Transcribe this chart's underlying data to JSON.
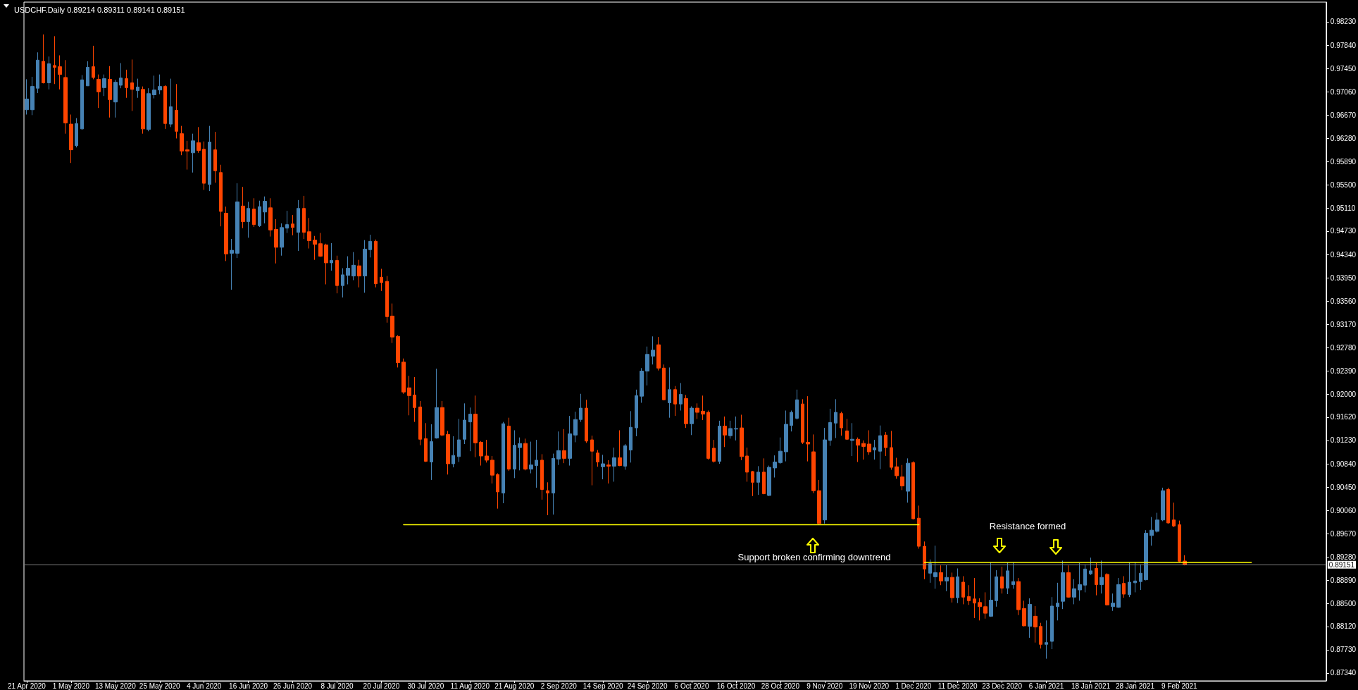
{
  "chart_data": {
    "type": "candlestick",
    "title": "USDCHF.Daily 0.89214 0.89311 0.89141 0.89151",
    "categories": [
      "21 Apr 2020",
      null,
      null,
      null,
      null,
      null,
      null,
      null,
      "1 May 2020",
      null,
      null,
      null,
      null,
      null,
      null,
      null,
      "13 May 2020",
      null,
      null,
      null,
      null,
      null,
      null,
      null,
      "25 May 2020",
      null,
      null,
      null,
      null,
      null,
      null,
      null,
      "4 Jun 2020",
      null,
      null,
      null,
      null,
      null,
      null,
      null,
      "16 Jun 2020",
      null,
      null,
      null,
      null,
      null,
      null,
      null,
      "26 Jun 2020",
      null,
      null,
      null,
      null,
      null,
      null,
      null,
      "8 Jul 2020",
      null,
      null,
      null,
      null,
      null,
      null,
      null,
      "20 Jul 2020",
      null,
      null,
      null,
      null,
      null,
      null,
      null,
      "30 Jul 2020",
      null,
      null,
      null,
      null,
      null,
      null,
      null,
      "11 Aug 2020",
      null,
      null,
      null,
      null,
      null,
      null,
      null,
      "21 Aug 2020",
      null,
      null,
      null,
      null,
      null,
      null,
      null,
      "2 Sep 2020",
      null,
      null,
      null,
      null,
      null,
      null,
      null,
      "14 Sep 2020",
      null,
      null,
      null,
      null,
      null,
      null,
      null,
      "24 Sep 2020",
      null,
      null,
      null,
      null,
      null,
      null,
      null,
      "6 Oct 2020",
      null,
      null,
      null,
      null,
      null,
      null,
      null,
      "16 Oct 2020",
      null,
      null,
      null,
      null,
      null,
      null,
      null,
      "28 Oct 2020",
      null,
      null,
      null,
      null,
      null,
      null,
      null,
      "9 Nov 2020",
      null,
      null,
      null,
      null,
      null,
      null,
      null,
      "19 Nov 2020",
      null,
      null,
      null,
      null,
      null,
      null,
      null,
      "1 Dec 2020",
      null,
      null,
      null,
      null,
      null,
      null,
      null,
      "11 Dec 2020",
      null,
      null,
      null,
      null,
      null,
      null,
      null,
      "23 Dec 2020",
      null,
      null,
      null,
      null,
      null,
      null,
      null,
      "6 Jan 2021",
      null,
      null,
      null,
      null,
      null,
      null,
      null,
      "18 Jan 2021",
      null,
      null,
      null,
      null,
      null,
      null,
      null,
      "28 Jan 2021",
      null,
      null,
      null,
      null,
      null,
      null,
      null,
      "9 Feb 2021",
      null,
      null,
      null,
      null,
      null,
      null,
      null,
      null,
      null,
      null,
      null,
      null,
      null,
      null,
      null,
      null,
      null,
      null,
      null,
      null,
      null,
      null,
      null,
      null,
      null,
      null
    ],
    "ohlc": [
      [
        0.9676,
        0.9727,
        0.9668,
        0.9694
      ],
      [
        0.9676,
        0.9731,
        0.9667,
        0.9715
      ],
      [
        0.9712,
        0.9772,
        0.9704,
        0.9759
      ],
      [
        0.9757,
        0.9802,
        0.972,
        0.9721
      ],
      [
        0.9721,
        0.9765,
        0.971,
        0.9753
      ],
      [
        0.975,
        0.9799,
        0.9719,
        0.9747
      ],
      [
        0.9748,
        0.9767,
        0.971,
        0.9735
      ],
      [
        0.973,
        0.9759,
        0.9636,
        0.9654
      ],
      [
        0.9652,
        0.9668,
        0.9587,
        0.9609
      ],
      [
        0.9616,
        0.9662,
        0.9613,
        0.9653
      ],
      [
        0.9644,
        0.9734,
        0.9643,
        0.9726
      ],
      [
        0.9716,
        0.9757,
        0.9716,
        0.9747
      ],
      [
        0.9748,
        0.9783,
        0.9727,
        0.973
      ],
      [
        0.9727,
        0.9735,
        0.9679,
        0.9706
      ],
      [
        0.9713,
        0.9735,
        0.9699,
        0.9728
      ],
      [
        0.9727,
        0.9749,
        0.9663,
        0.9693
      ],
      [
        0.9689,
        0.9726,
        0.9663,
        0.9722
      ],
      [
        0.9717,
        0.9754,
        0.9712,
        0.9729
      ],
      [
        0.9728,
        0.9743,
        0.9696,
        0.9713
      ],
      [
        0.9721,
        0.976,
        0.9674,
        0.971
      ],
      [
        0.9708,
        0.9728,
        0.9696,
        0.9714
      ],
      [
        0.971,
        0.9715,
        0.9636,
        0.9644
      ],
      [
        0.9643,
        0.9712,
        0.964,
        0.9703
      ],
      [
        0.9701,
        0.9733,
        0.9695,
        0.9709
      ],
      [
        0.9709,
        0.9735,
        0.9702,
        0.9715
      ],
      [
        0.9715,
        0.9717,
        0.9644,
        0.9653
      ],
      [
        0.9652,
        0.9728,
        0.9647,
        0.9681
      ],
      [
        0.9675,
        0.9719,
        0.9628,
        0.964
      ],
      [
        0.9636,
        0.9649,
        0.96,
        0.9607
      ],
      [
        0.9609,
        0.9624,
        0.9576,
        0.9607
      ],
      [
        0.9604,
        0.9636,
        0.9571,
        0.9624
      ],
      [
        0.9621,
        0.9647,
        0.9604,
        0.9608
      ],
      [
        0.961,
        0.9623,
        0.9542,
        0.9553
      ],
      [
        0.9551,
        0.9649,
        0.954,
        0.9622
      ],
      [
        0.9609,
        0.9639,
        0.9554,
        0.9574
      ],
      [
        0.9571,
        0.9584,
        0.9481,
        0.9506
      ],
      [
        0.9503,
        0.9514,
        0.9423,
        0.9435
      ],
      [
        0.9436,
        0.946,
        0.9375,
        0.9441
      ],
      [
        0.9436,
        0.9553,
        0.9428,
        0.9522
      ],
      [
        0.9515,
        0.9547,
        0.9478,
        0.9489
      ],
      [
        0.9489,
        0.9522,
        0.9462,
        0.9511
      ],
      [
        0.951,
        0.9528,
        0.948,
        0.9484
      ],
      [
        0.9482,
        0.9524,
        0.948,
        0.9514
      ],
      [
        0.9505,
        0.9531,
        0.9486,
        0.9523
      ],
      [
        0.9512,
        0.9528,
        0.9464,
        0.9475
      ],
      [
        0.9476,
        0.9493,
        0.9419,
        0.9446
      ],
      [
        0.9446,
        0.9486,
        0.9432,
        0.9479
      ],
      [
        0.9478,
        0.9507,
        0.947,
        0.9484
      ],
      [
        0.9485,
        0.95,
        0.9466,
        0.9479
      ],
      [
        0.9471,
        0.9525,
        0.944,
        0.9511
      ],
      [
        0.9511,
        0.9532,
        0.946,
        0.9471
      ],
      [
        0.9472,
        0.9495,
        0.9444,
        0.9457
      ],
      [
        0.9458,
        0.9465,
        0.9425,
        0.9451
      ],
      [
        0.9452,
        0.947,
        0.943,
        0.9431
      ],
      [
        0.945,
        0.9452,
        0.9384,
        0.942
      ],
      [
        0.942,
        0.9453,
        0.9407,
        0.9424
      ],
      [
        0.9424,
        0.9432,
        0.9369,
        0.9382
      ],
      [
        0.9382,
        0.9411,
        0.9362,
        0.94
      ],
      [
        0.9399,
        0.9431,
        0.9384,
        0.9411
      ],
      [
        0.9398,
        0.9438,
        0.9391,
        0.9416
      ],
      [
        0.9415,
        0.9425,
        0.9379,
        0.9398
      ],
      [
        0.9398,
        0.9458,
        0.937,
        0.9443
      ],
      [
        0.9442,
        0.9467,
        0.9429,
        0.9456
      ],
      [
        0.9456,
        0.9459,
        0.9379,
        0.9385
      ],
      [
        0.9396,
        0.941,
        0.9373,
        0.9387
      ],
      [
        0.9389,
        0.9398,
        0.932,
        0.933
      ],
      [
        0.9331,
        0.9352,
        0.9286,
        0.9296
      ],
      [
        0.9297,
        0.9299,
        0.9245,
        0.9253
      ],
      [
        0.9254,
        0.926,
        0.9201,
        0.9204
      ],
      [
        0.9211,
        0.9231,
        0.9165,
        0.9198
      ],
      [
        0.9199,
        0.9229,
        0.9154,
        0.9178
      ],
      [
        0.9179,
        0.9189,
        0.9115,
        0.9125
      ],
      [
        0.9126,
        0.9152,
        0.9087,
        0.9088
      ],
      [
        0.9087,
        0.915,
        0.9057,
        0.9121
      ],
      [
        0.9127,
        0.9243,
        0.9126,
        0.9178
      ],
      [
        0.9178,
        0.9189,
        0.913,
        0.9132
      ],
      [
        0.9133,
        0.9139,
        0.9066,
        0.9084
      ],
      [
        0.9084,
        0.913,
        0.9078,
        0.9098
      ],
      [
        0.9096,
        0.9159,
        0.9087,
        0.9124
      ],
      [
        0.9125,
        0.9185,
        0.9117,
        0.9157
      ],
      [
        0.9154,
        0.9178,
        0.9105,
        0.9167
      ],
      [
        0.9167,
        0.9198,
        0.9095,
        0.9119
      ],
      [
        0.912,
        0.9122,
        0.9081,
        0.9097
      ],
      [
        0.9097,
        0.9124,
        0.9086,
        0.909
      ],
      [
        0.909,
        0.9097,
        0.9051,
        0.9065
      ],
      [
        0.9066,
        0.9068,
        0.9009,
        0.9037
      ],
      [
        0.9035,
        0.9154,
        0.9018,
        0.9151
      ],
      [
        0.9147,
        0.9161,
        0.9072,
        0.9075
      ],
      [
        0.9075,
        0.914,
        0.906,
        0.9115
      ],
      [
        0.9111,
        0.9128,
        0.9073,
        0.9118
      ],
      [
        0.9118,
        0.9126,
        0.9073,
        0.9075
      ],
      [
        0.9075,
        0.9121,
        0.9068,
        0.9082
      ],
      [
        0.9081,
        0.9124,
        0.9044,
        0.909
      ],
      [
        0.909,
        0.91,
        0.9024,
        0.9041
      ],
      [
        0.9039,
        0.9053,
        0.8998,
        0.9035
      ],
      [
        0.9035,
        0.9101,
        0.8999,
        0.9093
      ],
      [
        0.9092,
        0.9138,
        0.9082,
        0.9106
      ],
      [
        0.9106,
        0.9142,
        0.9085,
        0.9093
      ],
      [
        0.9093,
        0.9164,
        0.9081,
        0.9134
      ],
      [
        0.9132,
        0.9171,
        0.912,
        0.9158
      ],
      [
        0.9158,
        0.9201,
        0.9154,
        0.9177
      ],
      [
        0.9177,
        0.9191,
        0.9119,
        0.9122
      ],
      [
        0.9124,
        0.9131,
        0.9048,
        0.9105
      ],
      [
        0.9102,
        0.9107,
        0.9079,
        0.9087
      ],
      [
        0.9079,
        0.9099,
        0.9058,
        0.9084
      ],
      [
        0.9082,
        0.909,
        0.9051,
        0.908
      ],
      [
        0.908,
        0.9111,
        0.9054,
        0.9094
      ],
      [
        0.9094,
        0.914,
        0.908,
        0.9081
      ],
      [
        0.908,
        0.9117,
        0.9074,
        0.9114
      ],
      [
        0.9107,
        0.9172,
        0.9086,
        0.9145
      ],
      [
        0.9144,
        0.9208,
        0.913,
        0.9198
      ],
      [
        0.9197,
        0.9244,
        0.9186,
        0.9239
      ],
      [
        0.9239,
        0.928,
        0.9215,
        0.9267
      ],
      [
        0.9264,
        0.9297,
        0.925,
        0.9274
      ],
      [
        0.9283,
        0.9296,
        0.924,
        0.9244
      ],
      [
        0.9244,
        0.925,
        0.919,
        0.9191
      ],
      [
        0.9186,
        0.9245,
        0.9161,
        0.9208
      ],
      [
        0.9208,
        0.9214,
        0.9164,
        0.9184
      ],
      [
        0.9184,
        0.9219,
        0.9173,
        0.92
      ],
      [
        0.9193,
        0.9199,
        0.9144,
        0.9151
      ],
      [
        0.9151,
        0.918,
        0.9132,
        0.9177
      ],
      [
        0.9177,
        0.9185,
        0.9159,
        0.917
      ],
      [
        0.9172,
        0.9198,
        0.9157,
        0.9167
      ],
      [
        0.917,
        0.9173,
        0.9091,
        0.9093
      ],
      [
        0.911,
        0.9124,
        0.9086,
        0.9088
      ],
      [
        0.9088,
        0.9156,
        0.9084,
        0.9147
      ],
      [
        0.9147,
        0.9163,
        0.9112,
        0.9132
      ],
      [
        0.9131,
        0.9156,
        0.9126,
        0.9143
      ],
      [
        0.9142,
        0.9163,
        0.9123,
        0.9143
      ],
      [
        0.9144,
        0.9166,
        0.909,
        0.9096
      ],
      [
        0.9097,
        0.9111,
        0.9054,
        0.907
      ],
      [
        0.9071,
        0.9072,
        0.903,
        0.9053
      ],
      [
        0.9053,
        0.908,
        0.9032,
        0.907
      ],
      [
        0.907,
        0.9093,
        0.9033,
        0.9034
      ],
      [
        0.9031,
        0.9081,
        0.903,
        0.9078
      ],
      [
        0.9077,
        0.9098,
        0.9061,
        0.9087
      ],
      [
        0.9086,
        0.9128,
        0.9084,
        0.9105
      ],
      [
        0.9104,
        0.9173,
        0.9088,
        0.915
      ],
      [
        0.9148,
        0.9173,
        0.9138,
        0.917
      ],
      [
        0.916,
        0.9208,
        0.9158,
        0.9191
      ],
      [
        0.9184,
        0.9192,
        0.9117,
        0.912
      ],
      [
        0.912,
        0.9197,
        0.9088,
        0.9117
      ],
      [
        0.9104,
        0.9133,
        0.9035,
        0.9039
      ],
      [
        0.9039,
        0.9057,
        0.8983,
        0.8984
      ],
      [
        0.899,
        0.9144,
        0.8984,
        0.9124
      ],
      [
        0.9123,
        0.9176,
        0.9114,
        0.9153
      ],
      [
        0.9152,
        0.9192,
        0.9127,
        0.917
      ],
      [
        0.9168,
        0.9171,
        0.9131,
        0.9144
      ],
      [
        0.9139,
        0.9159,
        0.9124,
        0.9125
      ],
      [
        0.9123,
        0.9152,
        0.9097,
        0.9125
      ],
      [
        0.9125,
        0.9128,
        0.9087,
        0.9115
      ],
      [
        0.9118,
        0.9123,
        0.9091,
        0.9113
      ],
      [
        0.9117,
        0.914,
        0.9099,
        0.9104
      ],
      [
        0.9107,
        0.9124,
        0.9091,
        0.9111
      ],
      [
        0.9105,
        0.9148,
        0.9075,
        0.9131
      ],
      [
        0.9132,
        0.9137,
        0.9097,
        0.9111
      ],
      [
        0.9111,
        0.9139,
        0.9074,
        0.9078
      ],
      [
        0.9079,
        0.9094,
        0.9059,
        0.9064
      ],
      [
        0.9062,
        0.9082,
        0.904,
        0.9047
      ],
      [
        0.9038,
        0.9093,
        0.9019,
        0.9085
      ],
      [
        0.9086,
        0.9088,
        0.8991,
        0.8992
      ],
      [
        0.8993,
        0.9014,
        0.8942,
        0.8946
      ],
      [
        0.8946,
        0.8954,
        0.8891,
        0.8908
      ],
      [
        0.8901,
        0.8924,
        0.8885,
        0.8917
      ],
      [
        0.8895,
        0.8947,
        0.8875,
        0.8902
      ],
      [
        0.8902,
        0.8914,
        0.8881,
        0.8888
      ],
      [
        0.8888,
        0.8915,
        0.8871,
        0.8894
      ],
      [
        0.8894,
        0.8902,
        0.8852,
        0.886
      ],
      [
        0.886,
        0.8909,
        0.8851,
        0.8895
      ],
      [
        0.8886,
        0.8896,
        0.8849,
        0.8861
      ],
      [
        0.8862,
        0.8881,
        0.8848,
        0.8855
      ],
      [
        0.8858,
        0.8893,
        0.8826,
        0.8851
      ],
      [
        0.8852,
        0.8859,
        0.8822,
        0.8845
      ],
      [
        0.8845,
        0.8869,
        0.8825,
        0.8834
      ],
      [
        0.8829,
        0.8919,
        0.8828,
        0.8856
      ],
      [
        0.8855,
        0.8906,
        0.8845,
        0.8895
      ],
      [
        0.8895,
        0.8912,
        0.8867,
        0.8876
      ],
      [
        0.8876,
        0.8919,
        0.8866,
        0.8905
      ],
      [
        0.8882,
        0.8919,
        0.8875,
        0.8887
      ],
      [
        0.8887,
        0.8893,
        0.8831,
        0.884
      ],
      [
        0.8842,
        0.8855,
        0.8812,
        0.8813
      ],
      [
        0.8812,
        0.8859,
        0.8793,
        0.8849
      ],
      [
        0.8829,
        0.8846,
        0.8785,
        0.8811
      ],
      [
        0.8812,
        0.8818,
        0.8775,
        0.8782
      ],
      [
        0.8782,
        0.8822,
        0.8758,
        0.8785
      ],
      [
        0.8787,
        0.8861,
        0.8774,
        0.8846
      ],
      [
        0.8845,
        0.8885,
        0.8822,
        0.8851
      ],
      [
        0.8854,
        0.8922,
        0.8841,
        0.8902
      ],
      [
        0.8902,
        0.8914,
        0.886,
        0.8861
      ],
      [
        0.8861,
        0.8891,
        0.8849,
        0.8875
      ],
      [
        0.8873,
        0.8918,
        0.8855,
        0.8882
      ],
      [
        0.8881,
        0.8916,
        0.8869,
        0.8908
      ],
      [
        0.89,
        0.8927,
        0.8898,
        0.8905
      ],
      [
        0.8909,
        0.8918,
        0.8864,
        0.8882
      ],
      [
        0.8882,
        0.8922,
        0.8867,
        0.8894
      ],
      [
        0.8899,
        0.8901,
        0.8847,
        0.8848
      ],
      [
        0.8845,
        0.8867,
        0.8838,
        0.8851
      ],
      [
        0.8844,
        0.8893,
        0.8843,
        0.8882
      ],
      [
        0.8884,
        0.8896,
        0.886,
        0.8866
      ],
      [
        0.8865,
        0.8919,
        0.8861,
        0.8886
      ],
      [
        0.8885,
        0.8919,
        0.8869,
        0.8888
      ],
      [
        0.8887,
        0.8916,
        0.8873,
        0.8901
      ],
      [
        0.889,
        0.8973,
        0.8889,
        0.8968
      ],
      [
        0.8964,
        0.8995,
        0.8947,
        0.8973
      ],
      [
        0.8971,
        0.9002,
        0.8969,
        0.899
      ],
      [
        0.899,
        0.9044,
        0.8988,
        0.9039
      ],
      [
        0.9041,
        0.9044,
        0.8984,
        0.8985
      ],
      [
        0.899,
        0.9019,
        0.8978,
        0.898
      ],
      [
        0.8982,
        0.8989,
        0.8919,
        0.8921
      ],
      [
        0.89214,
        0.89311,
        0.89141,
        0.89151
      ],
      null,
      null,
      null,
      null,
      null,
      null,
      null,
      null,
      null,
      null,
      null,
      null,
      null,
      null,
      null,
      null,
      null,
      null,
      null,
      null,
      null,
      null,
      null,
      null,
      null
    ],
    "colors": [
      "#4682b4",
      "#4682b4",
      "#4682b4",
      "#ff4500",
      "#4682b4",
      "#ff4500",
      "#ff4500",
      "#ff4500",
      "#ff4500",
      "#4682b4",
      "#4682b4",
      "#4682b4",
      "#ff4500",
      "#ff4500",
      "#4682b4",
      "#ff4500",
      "#4682b4",
      "#4682b4",
      "#ff4500",
      "#ff4500",
      "#4682b4",
      "#ff4500",
      "#4682b4",
      "#4682b4",
      "#4682b4",
      "#ff4500",
      "#4682b4",
      "#ff4500",
      "#ff4500",
      "#ff4500",
      "#4682b4",
      "#ff4500",
      "#ff4500",
      "#4682b4",
      "#ff4500",
      "#ff4500",
      "#ff4500",
      "#4682b4",
      "#4682b4",
      "#ff4500",
      "#4682b4",
      "#ff4500",
      "#4682b4",
      "#4682b4",
      "#ff4500",
      "#ff4500",
      "#4682b4",
      "#4682b4",
      "#ff4500",
      "#4682b4",
      "#ff4500",
      "#ff4500",
      "#ff4500",
      "#ff4500",
      "#ff4500",
      "#4682b4",
      "#ff4500",
      "#4682b4",
      "#4682b4",
      "#4682b4",
      "#ff4500",
      "#4682b4",
      "#4682b4",
      "#ff4500",
      "#ff4500",
      "#ff4500",
      "#ff4500",
      "#ff4500",
      "#ff4500",
      "#ff4500",
      "#ff4500",
      "#ff4500",
      "#ff4500",
      "#4682b4",
      "#4682b4",
      "#ff4500",
      "#ff4500",
      "#4682b4",
      "#4682b4",
      "#4682b4",
      "#4682b4",
      "#ff4500",
      "#ff4500",
      "#ff4500",
      "#ff4500",
      "#ff4500",
      "#4682b4",
      "#ff4500",
      "#4682b4",
      "#4682b4",
      "#ff4500",
      "#4682b4",
      "#4682b4",
      "#ff4500",
      "#ff4500",
      "#4682b4",
      "#4682b4",
      "#ff4500",
      "#4682b4",
      "#4682b4",
      "#4682b4",
      "#ff4500",
      "#ff4500",
      "#ff4500",
      "#4682b4",
      "#ff4500",
      "#4682b4",
      "#ff4500",
      "#4682b4",
      "#4682b4",
      "#4682b4",
      "#4682b4",
      "#4682b4",
      "#4682b4",
      "#ff4500",
      "#ff4500",
      "#4682b4",
      "#ff4500",
      "#4682b4",
      "#ff4500",
      "#4682b4",
      "#ff4500",
      "#ff4500",
      "#ff4500",
      "#ff4500",
      "#4682b4",
      "#ff4500",
      "#4682b4",
      "#4682b4",
      "#ff4500",
      "#ff4500",
      "#ff4500",
      "#4682b4",
      "#ff4500",
      "#4682b4",
      "#4682b4",
      "#4682b4",
      "#4682b4",
      "#4682b4",
      "#4682b4",
      "#ff4500",
      "#ff4500",
      "#ff4500",
      "#ff4500",
      "#4682b4",
      "#4682b4",
      "#4682b4",
      "#ff4500",
      "#ff4500",
      "#4682b4",
      "#ff4500",
      "#ff4500",
      "#ff4500",
      "#4682b4",
      "#4682b4",
      "#ff4500",
      "#ff4500",
      "#ff4500",
      "#ff4500",
      "#4682b4",
      "#ff4500",
      "#ff4500",
      "#ff4500",
      "#4682b4",
      "#4682b4",
      "#ff4500",
      "#4682b4",
      "#ff4500",
      "#4682b4",
      "#ff4500",
      "#ff4500",
      "#ff4500",
      "#ff4500",
      "#ff4500",
      "#4682b4",
      "#4682b4",
      "#ff4500",
      "#4682b4",
      "#4682b4",
      "#ff4500",
      "#ff4500",
      "#4682b4",
      "#ff4500",
      "#ff4500",
      "#4682b4",
      "#4682b4",
      "#4682b4",
      "#4682b4",
      "#ff4500",
      "#4682b4",
      "#4682b4",
      "#4682b4",
      "#4682b4",
      "#ff4500",
      "#4682b4",
      "#ff4500",
      "#4682b4",
      "#4682b4",
      "#ff4500",
      "#4682b4",
      "#4682b4",
      "#4682b4",
      "#4682b4",
      "#4682b4",
      "#4682b4",
      "#4682b4",
      "#ff4500",
      "#ff4500",
      "#ff4500",
      "#ff4500",
      null,
      null,
      null,
      null,
      null,
      null,
      null,
      null,
      null,
      null,
      null,
      null,
      null,
      null,
      null,
      null,
      null,
      null,
      null,
      null,
      null,
      null,
      null,
      null,
      null
    ],
    "series": [
      {
        "type": "line",
        "color": "#ffff00",
        "values": [
          null,
          null,
          null,
          null,
          null,
          null,
          null,
          null,
          null,
          null,
          null,
          null,
          null,
          null,
          null,
          null,
          null,
          null,
          null,
          null,
          null,
          null,
          null,
          null,
          null,
          null,
          null,
          null,
          null,
          null,
          null,
          null,
          null,
          null,
          null,
          null,
          null,
          null,
          null,
          null,
          null,
          null,
          null,
          null,
          null,
          null,
          null,
          null,
          null,
          null,
          null,
          null,
          null,
          null,
          null,
          null,
          null,
          null,
          null,
          null,
          null,
          null,
          null,
          null,
          null,
          null,
          null,
          null,
          0.8982,
          0.8982,
          0.8982,
          0.8982,
          0.8982,
          0.8982,
          0.8982,
          0.8982,
          0.8982,
          0.8982,
          0.8982,
          0.8982,
          0.8982,
          0.8982,
          0.8982,
          0.8982,
          0.8982,
          0.8982,
          0.8982,
          0.8982,
          0.8982,
          0.8982,
          0.8982,
          0.8982,
          0.8982,
          0.8982,
          0.8982,
          0.8982,
          0.8982,
          0.8982,
          0.8982,
          0.8982,
          0.8982,
          0.8982,
          0.8982,
          0.8982,
          0.8982,
          0.8982,
          0.8982,
          0.8982,
          0.8982,
          0.8982,
          0.8982,
          0.8982,
          0.8982,
          0.8982,
          0.8982,
          0.8982,
          0.8982,
          0.8982,
          0.8982,
          0.8982,
          0.8982,
          0.8982,
          0.8982,
          0.8982,
          0.8982,
          0.8982,
          0.8982,
          0.8982,
          0.8982,
          0.8982,
          0.8982,
          0.8982,
          0.8982,
          0.8982,
          0.8982,
          0.8982,
          0.8982,
          0.8982,
          0.8982,
          0.8982,
          0.8982,
          0.8982,
          0.8982,
          0.8982,
          0.8982,
          0.8982,
          0.8982,
          0.8982,
          0.8982,
          0.8982,
          0.8982,
          0.8982,
          0.8982,
          0.8982,
          0.8982,
          0.8982,
          0.8982,
          0.8982,
          0.8982,
          0.8982,
          0.8982,
          0.8982,
          null,
          null,
          null,
          null,
          null,
          null,
          null,
          null,
          null,
          null,
          null,
          null,
          null,
          null,
          null,
          null,
          null,
          null,
          null,
          null,
          null,
          null,
          null,
          null,
          null,
          null,
          null,
          null,
          null,
          null,
          null,
          null,
          null,
          null,
          null,
          null,
          null,
          null,
          null,
          null,
          null,
          null,
          null,
          null,
          null,
          null,
          null,
          null,
          null,
          null,
          null,
          null,
          null,
          null,
          null,
          null,
          null,
          null,
          null,
          null,
          null,
          null,
          null,
          null,
          null,
          null,
          null,
          null,
          null,
          null,
          null,
          null,
          null
        ]
      },
      {
        "type": "line",
        "color": "#ffff00",
        "values": [
          null,
          null,
          null,
          null,
          null,
          null,
          null,
          null,
          null,
          null,
          null,
          null,
          null,
          null,
          null,
          null,
          null,
          null,
          null,
          null,
          null,
          null,
          null,
          null,
          null,
          null,
          null,
          null,
          null,
          null,
          null,
          null,
          null,
          null,
          null,
          null,
          null,
          null,
          null,
          null,
          null,
          null,
          null,
          null,
          null,
          null,
          null,
          null,
          null,
          null,
          null,
          null,
          null,
          null,
          null,
          null,
          null,
          null,
          null,
          null,
          null,
          null,
          null,
          null,
          null,
          null,
          null,
          null,
          null,
          null,
          null,
          null,
          null,
          null,
          null,
          null,
          null,
          null,
          null,
          null,
          null,
          null,
          null,
          null,
          null,
          null,
          null,
          null,
          null,
          null,
          null,
          null,
          null,
          null,
          null,
          null,
          null,
          null,
          null,
          null,
          null,
          null,
          null,
          null,
          null,
          null,
          null,
          null,
          null,
          null,
          null,
          null,
          null,
          null,
          null,
          null,
          null,
          null,
          null,
          null,
          null,
          null,
          null,
          null,
          null,
          null,
          null,
          null,
          null,
          null,
          null,
          null,
          null,
          null,
          null,
          null,
          null,
          null,
          null,
          null,
          null,
          null,
          null,
          null,
          null,
          null,
          null,
          null,
          null,
          null,
          null,
          null,
          null,
          null,
          null,
          null,
          null,
          null,
          null,
          null,
          null,
          null,
          0.8919,
          0.8919,
          0.8919,
          0.8919,
          0.8919,
          0.8919,
          0.8919,
          0.8919,
          0.8919,
          0.8919,
          0.8919,
          0.8919,
          0.8919,
          0.8919,
          0.8919,
          0.8919,
          0.8919,
          0.8919,
          0.8919,
          0.8919,
          0.8919,
          0.8919,
          0.8919,
          0.8919,
          0.8919,
          0.8919,
          0.8919,
          0.8919,
          0.8919,
          0.8919,
          0.8919,
          0.8919,
          0.8919,
          0.8919,
          0.8919,
          0.8919,
          0.8919,
          0.8919,
          0.8919,
          0.8919,
          0.8919,
          0.8919,
          0.8919,
          0.8919,
          0.8919,
          0.8919,
          0.8919,
          0.8919,
          0.8919,
          0.8919,
          0.8919,
          0.8919,
          0.8919,
          0.8919,
          0.8919,
          0.8919,
          0.8919,
          0.8919,
          0.8919,
          0.8919,
          null,
          null,
          null,
          null,
          null,
          null,
          null,
          null,
          null,
          null,
          null,
          null,
          null
        ]
      }
    ],
    "ylim": [
      0.8721,
      0.9856
    ],
    "yticks": [
      {
        "value": 0.9823,
        "label": "0.98230"
      },
      {
        "value": 0.9784,
        "label": "0.97840"
      },
      {
        "value": 0.9745,
        "label": "0.97450"
      },
      {
        "value": 0.9706,
        "label": "0.97060"
      },
      {
        "value": 0.9667,
        "label": "0.96670"
      },
      {
        "value": 0.9628,
        "label": "0.96280"
      },
      {
        "value": 0.9589,
        "label": "0.95890"
      },
      {
        "value": 0.955,
        "label": "0.95500"
      },
      {
        "value": 0.9511,
        "label": "0.95110"
      },
      {
        "value": 0.9473,
        "label": "0.94730"
      },
      {
        "value": 0.9434,
        "label": "0.94340"
      },
      {
        "value": 0.9395,
        "label": "0.93950"
      },
      {
        "value": 0.9356,
        "label": "0.93560"
      },
      {
        "value": 0.9317,
        "label": "0.93170"
      },
      {
        "value": 0.9278,
        "label": "0.92780"
      },
      {
        "value": 0.9239,
        "label": "0.92390"
      },
      {
        "value": 0.92,
        "label": "0.92000"
      },
      {
        "value": 0.9162,
        "label": "0.91620"
      },
      {
        "value": 0.9123,
        "label": "0.91230"
      },
      {
        "value": 0.9084,
        "label": "0.90840"
      },
      {
        "value": 0.9045,
        "label": "0.90450"
      },
      {
        "value": 0.9006,
        "label": "0.90060"
      },
      {
        "value": 0.8967,
        "label": "0.89670"
      },
      {
        "value": 0.8928,
        "label": "0.89280"
      },
      {
        "value": 0.8889,
        "label": "0.88890"
      },
      {
        "value": 0.885,
        "label": "0.88500"
      },
      {
        "value": 0.8812,
        "label": "0.88120"
      },
      {
        "value": 0.8773,
        "label": "0.87730"
      },
      {
        "value": 0.8734,
        "label": "0.87340"
      }
    ],
    "ref_lines": [
      {
        "axis": "y",
        "value": 0.89151,
        "label": "0.89151",
        "color": "#808080"
      }
    ],
    "annotations": [
      "Support broken confirming downtrend",
      "Resistance formed"
    ],
    "marker": "none",
    "grid": false
  }
}
